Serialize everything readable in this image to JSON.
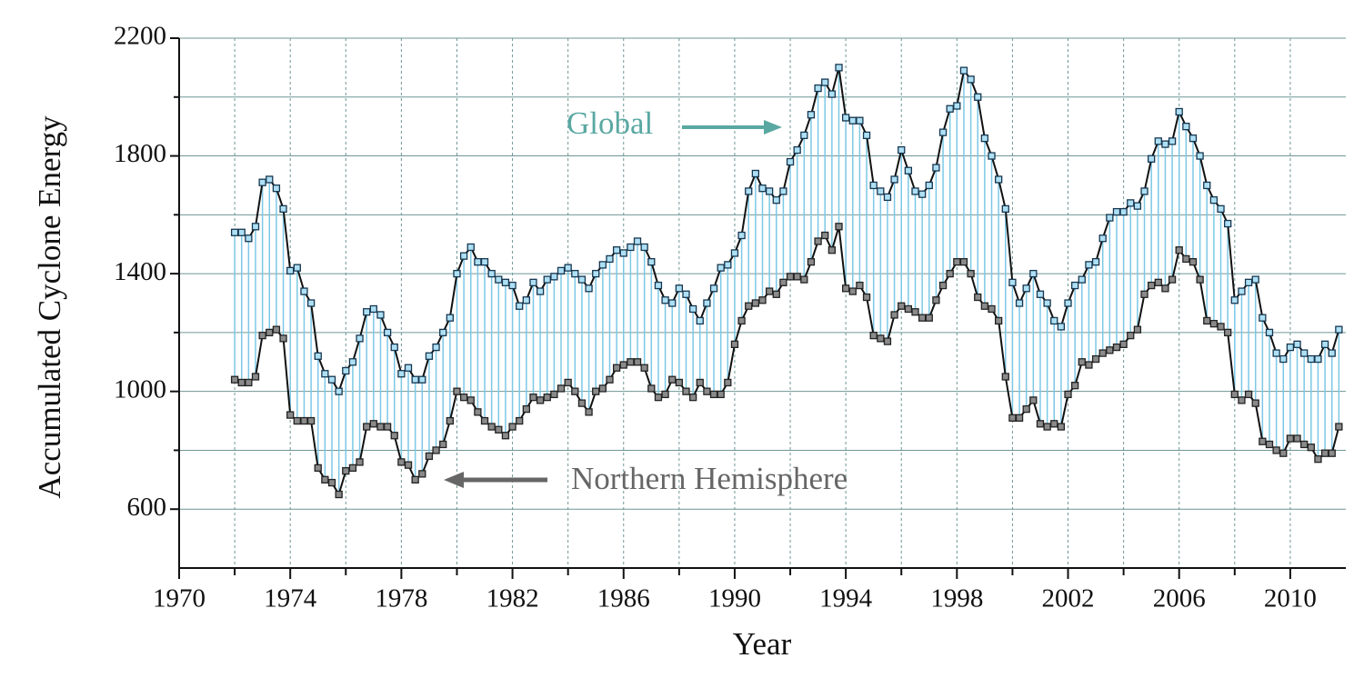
{
  "chart_data": {
    "type": "line",
    "xlabel": "Year",
    "ylabel": "Accumulated Cyclone Energy",
    "xlim": [
      1970,
      2012
    ],
    "xticks": [
      1970,
      1974,
      1978,
      1982,
      1986,
      1990,
      1994,
      1998,
      2002,
      2006,
      2010
    ],
    "xminorticks": [
      1972,
      1976,
      1980,
      1984,
      1988,
      1992,
      1996,
      2000,
      2004,
      2008
    ],
    "ylim": [
      400,
      2200
    ],
    "yticks": [
      600,
      1000,
      1400,
      1800,
      2200
    ],
    "yminorticks": [
      800,
      1200,
      1600,
      2000
    ],
    "grid": true,
    "annotations": [
      {
        "text": "Global",
        "color": "#5aa8a2"
      },
      {
        "text": "Northern Hemisphere",
        "color": "#666666"
      }
    ],
    "x": [
      1972,
      1972.25,
      1972.5,
      1972.75,
      1973,
      1973.25,
      1973.5,
      1973.75,
      1974,
      1974.25,
      1974.5,
      1974.75,
      1975,
      1975.25,
      1975.5,
      1975.75,
      1976,
      1976.25,
      1976.5,
      1976.75,
      1977,
      1977.25,
      1977.5,
      1977.75,
      1978,
      1978.25,
      1978.5,
      1978.75,
      1979,
      1979.25,
      1979.5,
      1979.75,
      1980,
      1980.25,
      1980.5,
      1980.75,
      1981,
      1981.25,
      1981.5,
      1981.75,
      1982,
      1982.25,
      1982.5,
      1982.75,
      1983,
      1983.25,
      1983.5,
      1983.75,
      1984,
      1984.25,
      1984.5,
      1984.75,
      1985,
      1985.25,
      1985.5,
      1985.75,
      1986,
      1986.25,
      1986.5,
      1986.75,
      1987,
      1987.25,
      1987.5,
      1987.75,
      1988,
      1988.25,
      1988.5,
      1988.75,
      1989,
      1989.25,
      1989.5,
      1989.75,
      1990,
      1990.25,
      1990.5,
      1990.75,
      1991,
      1991.25,
      1991.5,
      1991.75,
      1992,
      1992.25,
      1992.5,
      1992.75,
      1993,
      1993.25,
      1993.5,
      1993.75,
      1994,
      1994.25,
      1994.5,
      1994.75,
      1995,
      1995.25,
      1995.5,
      1995.75,
      1996,
      1996.25,
      1996.5,
      1996.75,
      1997,
      1997.25,
      1997.5,
      1997.75,
      1998,
      1998.25,
      1998.5,
      1998.75,
      1999,
      1999.25,
      1999.5,
      1999.75,
      2000,
      2000.25,
      2000.5,
      2000.75,
      2001,
      2001.25,
      2001.5,
      2001.75,
      2002,
      2002.25,
      2002.5,
      2002.75,
      2003,
      2003.25,
      2003.5,
      2003.75,
      2004,
      2004.25,
      2004.5,
      2004.75,
      2005,
      2005.25,
      2005.5,
      2005.75,
      2006,
      2006.25,
      2006.5,
      2006.75,
      2007,
      2007.25,
      2007.5,
      2007.75,
      2008,
      2008.25,
      2008.5,
      2008.75,
      2009,
      2009.25,
      2009.5,
      2009.75,
      2010,
      2010.25,
      2010.5,
      2010.75,
      2011,
      2011.25,
      2011.5,
      2011.75
    ],
    "series": [
      {
        "name": "Global",
        "color": "#aee0f5",
        "values": [
          1540,
          1540,
          1520,
          1560,
          1710,
          1720,
          1690,
          1620,
          1410,
          1420,
          1340,
          1300,
          1120,
          1060,
          1040,
          1000,
          1070,
          1100,
          1180,
          1270,
          1280,
          1260,
          1200,
          1150,
          1060,
          1080,
          1040,
          1040,
          1120,
          1150,
          1200,
          1250,
          1400,
          1460,
          1490,
          1440,
          1440,
          1400,
          1380,
          1370,
          1360,
          1290,
          1310,
          1370,
          1340,
          1380,
          1390,
          1410,
          1420,
          1400,
          1380,
          1350,
          1400,
          1430,
          1450,
          1480,
          1470,
          1490,
          1510,
          1490,
          1440,
          1360,
          1310,
          1300,
          1350,
          1330,
          1280,
          1240,
          1300,
          1350,
          1420,
          1430,
          1470,
          1530,
          1680,
          1740,
          1690,
          1680,
          1650,
          1680,
          1780,
          1820,
          1870,
          1940,
          2030,
          2050,
          2010,
          2100,
          1930,
          1920,
          1920,
          1870,
          1700,
          1680,
          1660,
          1720,
          1820,
          1750,
          1680,
          1670,
          1700,
          1760,
          1880,
          1960,
          1970,
          2090,
          2060,
          2000,
          1860,
          1800,
          1720,
          1620,
          1370,
          1300,
          1350,
          1400,
          1330,
          1300,
          1240,
          1220,
          1300,
          1360,
          1380,
          1430,
          1440,
          1520,
          1590,
          1610,
          1610,
          1640,
          1630,
          1680,
          1790,
          1850,
          1840,
          1850,
          1950,
          1900,
          1860,
          1800,
          1700,
          1650,
          1620,
          1570,
          1310,
          1340,
          1370,
          1380,
          1250,
          1200,
          1130,
          1110,
          1150,
          1160,
          1130,
          1110,
          1110,
          1160,
          1130,
          1210
        ]
      },
      {
        "name": "Northern Hemisphere",
        "color": "#8a8a8a",
        "values": [
          1040,
          1030,
          1030,
          1050,
          1190,
          1200,
          1210,
          1180,
          920,
          900,
          900,
          900,
          740,
          700,
          690,
          650,
          730,
          740,
          760,
          880,
          890,
          880,
          880,
          850,
          760,
          750,
          700,
          720,
          780,
          800,
          820,
          900,
          1000,
          980,
          970,
          930,
          900,
          880,
          870,
          850,
          880,
          900,
          940,
          980,
          970,
          980,
          990,
          1010,
          1030,
          1000,
          960,
          930,
          1000,
          1010,
          1040,
          1080,
          1090,
          1100,
          1100,
          1080,
          1010,
          980,
          990,
          1040,
          1030,
          1000,
          980,
          1030,
          1000,
          990,
          990,
          1030,
          1160,
          1240,
          1290,
          1300,
          1310,
          1340,
          1330,
          1370,
          1390,
          1390,
          1380,
          1440,
          1510,
          1530,
          1480,
          1560,
          1350,
          1340,
          1360,
          1320,
          1190,
          1180,
          1170,
          1260,
          1290,
          1280,
          1270,
          1250,
          1250,
          1310,
          1360,
          1400,
          1440,
          1440,
          1400,
          1320,
          1290,
          1280,
          1240,
          1050,
          910,
          910,
          940,
          970,
          890,
          880,
          890,
          880,
          990,
          1020,
          1100,
          1090,
          1110,
          1130,
          1140,
          1150,
          1160,
          1190,
          1210,
          1330,
          1360,
          1370,
          1350,
          1380,
          1480,
          1450,
          1440,
          1380,
          1240,
          1230,
          1220,
          1200,
          990,
          970,
          990,
          960,
          830,
          820,
          800,
          790,
          840,
          840,
          820,
          810,
          770,
          790,
          790,
          880
        ]
      }
    ]
  }
}
